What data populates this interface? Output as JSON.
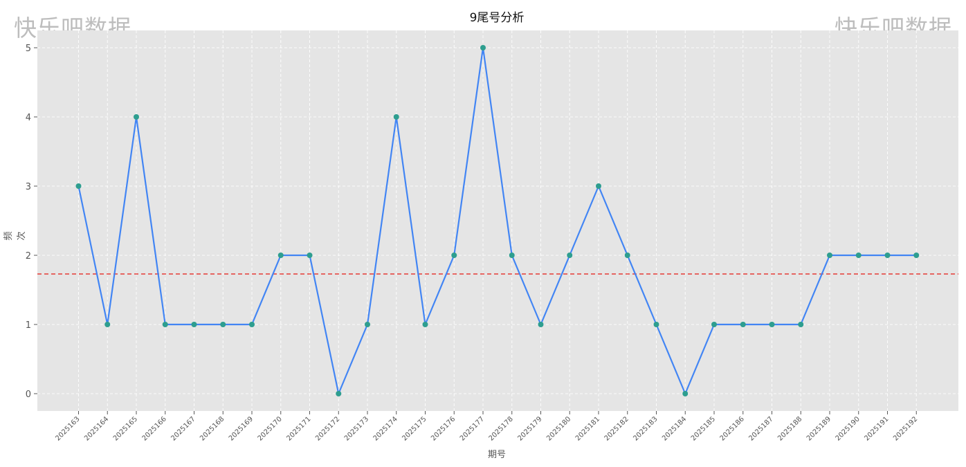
{
  "watermark": {
    "left": "快乐吧数据",
    "right": "快乐吧数据"
  },
  "chart_data": {
    "type": "line",
    "title": "9尾号分析",
    "xlabel": "期号",
    "ylabel": "频次",
    "categories": [
      "2025163",
      "2025164",
      "2025165",
      "2025166",
      "2025167",
      "2025168",
      "2025169",
      "2025170",
      "2025171",
      "2025172",
      "2025173",
      "2025174",
      "2025175",
      "2025176",
      "2025177",
      "2025178",
      "2025179",
      "2025180",
      "2025181",
      "2025182",
      "2025183",
      "2025184",
      "2025185",
      "2025186",
      "2025187",
      "2025188",
      "2025189",
      "2025190",
      "2025191",
      "2025192"
    ],
    "series": [
      {
        "values": [
          3,
          1,
          4,
          1,
          1,
          1,
          1,
          2,
          2,
          0,
          1,
          4,
          1,
          2,
          5,
          2,
          1,
          2,
          3,
          2,
          1,
          0,
          1,
          1,
          1,
          1,
          2,
          2,
          2,
          2
        ],
        "color": "#4285f4",
        "marker_color": "#2e9e8f"
      }
    ],
    "mean_line": {
      "value": 1.73,
      "color": "#e53935",
      "style": "dashed"
    },
    "ylim": [
      -0.25,
      5.25
    ],
    "yticks": [
      0,
      1,
      2,
      3,
      4,
      5
    ],
    "grid": true,
    "background": "#e5e5e5"
  }
}
